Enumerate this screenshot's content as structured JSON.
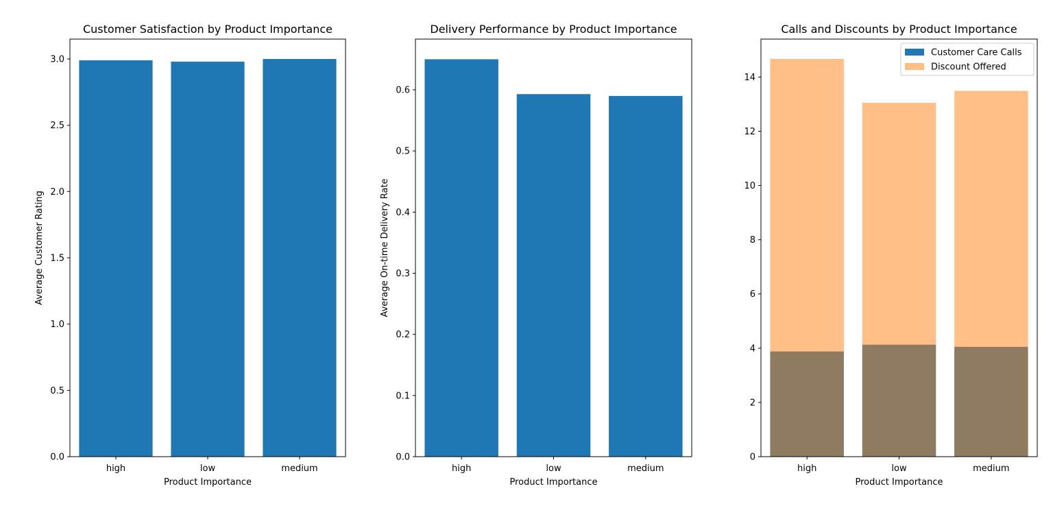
{
  "chart_data": [
    {
      "type": "bar",
      "title": "Customer Satisfaction by Product Importance",
      "xlabel": "Product Importance",
      "ylabel": "Average Customer Rating",
      "categories": [
        "high",
        "low",
        "medium"
      ],
      "series": [
        {
          "values": [
            2.99,
            2.98,
            3.0
          ],
          "color": "#1f77b4",
          "alpha": 1
        }
      ],
      "ylim": [
        0,
        3.15
      ],
      "yticks": [
        0.0,
        0.5,
        1.0,
        1.5,
        2.0,
        2.5,
        3.0
      ],
      "ytick_labels": [
        "0.0",
        "0.5",
        "1.0",
        "1.5",
        "2.0",
        "2.5",
        "3.0"
      ],
      "grid": false
    },
    {
      "type": "bar",
      "title": "Delivery Performance by Product Importance",
      "xlabel": "Product Importance",
      "ylabel": "Average On-time Delivery Rate",
      "categories": [
        "high",
        "low",
        "medium"
      ],
      "series": [
        {
          "values": [
            0.65,
            0.593,
            0.59
          ],
          "color": "#1f77b4",
          "alpha": 1
        }
      ],
      "ylim": [
        0,
        0.683
      ],
      "yticks": [
        0.0,
        0.1,
        0.2,
        0.3,
        0.4,
        0.5,
        0.6
      ],
      "ytick_labels": [
        "0.0",
        "0.1",
        "0.2",
        "0.3",
        "0.4",
        "0.5",
        "0.6"
      ],
      "grid": false
    },
    {
      "type": "bar",
      "title": "Calls and Discounts by Product Importance",
      "xlabel": "Product Importance",
      "ylabel": "",
      "categories": [
        "high",
        "low",
        "medium"
      ],
      "series": [
        {
          "name": "Customer Care Calls",
          "values": [
            3.88,
            4.13,
            4.05
          ],
          "color": "#1f77b4",
          "alpha": 1
        },
        {
          "name": "Discount Offered",
          "values": [
            14.67,
            13.05,
            13.49
          ],
          "color": "#ff7f0e",
          "alpha": 0.5
        }
      ],
      "ylim": [
        0,
        15.4
      ],
      "yticks": [
        0,
        2,
        4,
        6,
        8,
        10,
        12,
        14
      ],
      "ytick_labels": [
        "0",
        "2",
        "4",
        "6",
        "8",
        "10",
        "12",
        "14"
      ],
      "legend": "top-right",
      "grid": false
    }
  ]
}
